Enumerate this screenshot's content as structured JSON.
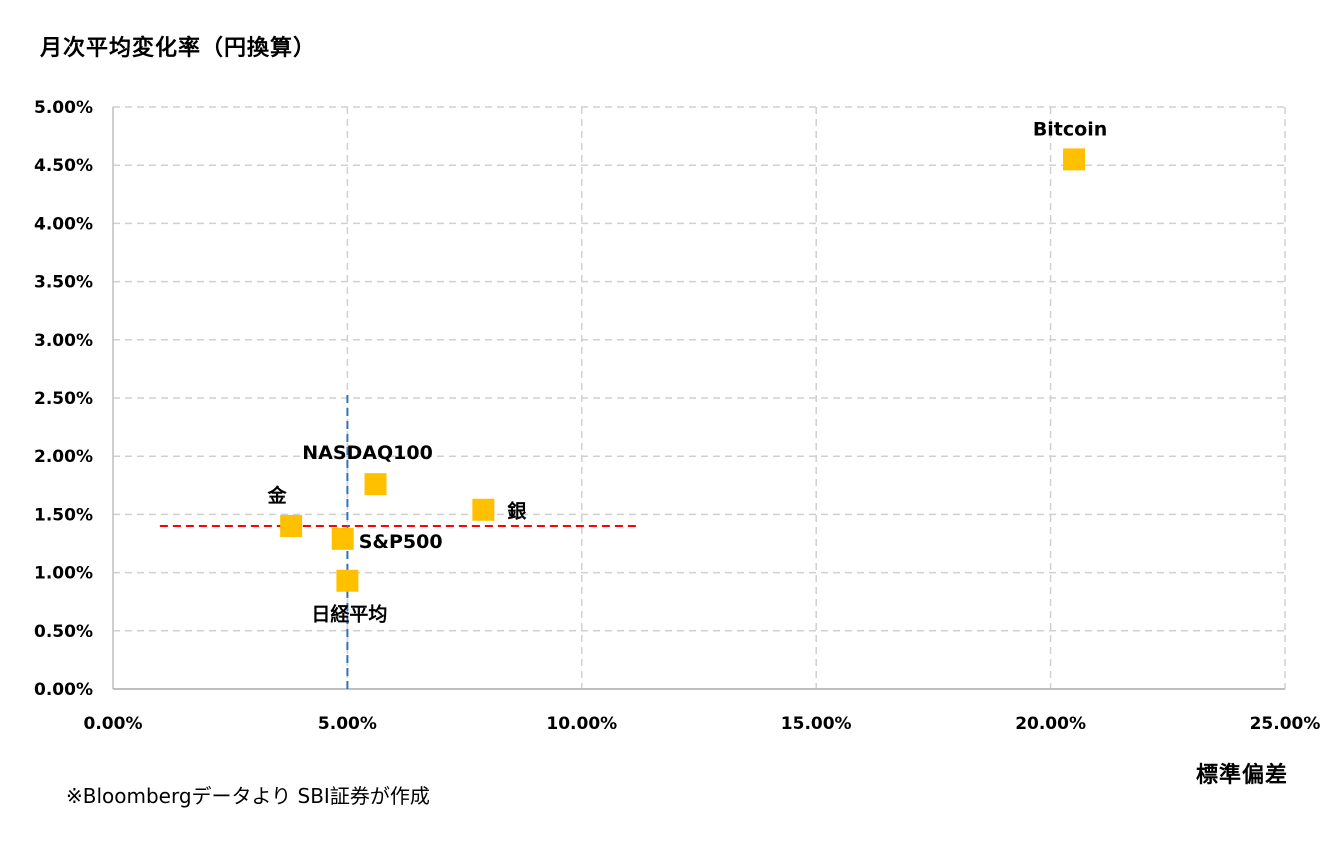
{
  "chart_data": {
    "type": "scatter",
    "title": "",
    "ylabel": "月次平均変化率（円換算）",
    "xlabel": "標準偏差",
    "xlim": [
      0,
      25
    ],
    "ylim": [
      0,
      5
    ],
    "x_ticks": [
      "0.00%",
      "5.00%",
      "10.00%",
      "15.00%",
      "20.00%",
      "25.00%"
    ],
    "y_ticks": [
      "0.00%",
      "0.50%",
      "1.00%",
      "1.50%",
      "2.00%",
      "2.50%",
      "3.00%",
      "3.50%",
      "4.00%",
      "4.50%",
      "5.00%"
    ],
    "grid": true,
    "marker_color": "#FFC000",
    "points": [
      {
        "label": "Bitcoin",
        "x": 20.5,
        "y": 4.55
      },
      {
        "label": "NASDAQ100",
        "x": 5.6,
        "y": 1.76
      },
      {
        "label": "銀",
        "x": 7.9,
        "y": 1.54
      },
      {
        "label": "金",
        "x": 3.8,
        "y": 1.4
      },
      {
        "label": "S&P500",
        "x": 4.9,
        "y": 1.29
      },
      {
        "label": "日経平均",
        "x": 5.0,
        "y": 0.93
      }
    ],
    "reference_lines": [
      {
        "orientation": "horizontal",
        "value": 1.4,
        "from": 1.0,
        "to": 11.2,
        "color": "#FF0000"
      },
      {
        "orientation": "vertical",
        "value": 5.0,
        "from": 0,
        "to": 2.55,
        "color": "#2E75B6"
      }
    ]
  },
  "footnote": "※Bloombergデータより SBI証券が作成"
}
